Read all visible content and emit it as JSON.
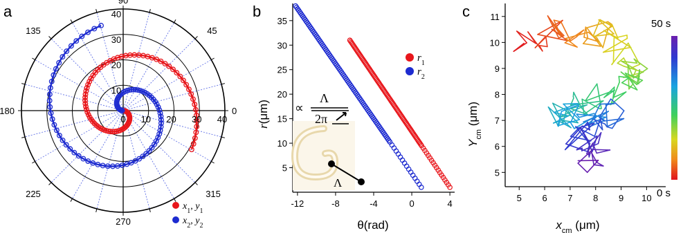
{
  "panel_letters": [
    "a",
    "b",
    "c"
  ],
  "chart_data": [
    {
      "type": "polar",
      "panel": "a",
      "angle_ticks_deg": [
        "90",
        "45",
        "0",
        "315",
        "270",
        "225",
        "180",
        "135"
      ],
      "radial_ticks": [
        "0",
        "10",
        "20",
        "30",
        "40"
      ],
      "r_max": 40,
      "radial_labels_upper": [
        "10",
        "20",
        "30",
        "40"
      ],
      "legend": [
        "x1, y1",
        "x2, y2"
      ],
      "legend_tex": [
        {
          "base": "x",
          "sub": "1",
          "base2": "y",
          "sub2": "1"
        },
        {
          "base": "x",
          "sub": "2",
          "base2": "y",
          "sub2": "2"
        }
      ],
      "series": [
        {
          "name": "x1, y1",
          "color": "#e8161b",
          "r_at_theta0": 0,
          "dr_per_rad": 4.55,
          "theta_end": 6.8
        },
        {
          "name": "x2, y2",
          "color": "#1d2bd0",
          "r_at_theta0": 0,
          "dr_per_rad": 4.55,
          "theta_end": 7.6,
          "phase": 3.14159
        }
      ]
    },
    {
      "type": "scatter",
      "panel": "b",
      "xlabel": "θ(rad)",
      "ylabel_sym": "r",
      "ylabel_unit": "(μm)",
      "xticks": [
        "-12",
        "-8",
        "-4",
        "0",
        "4"
      ],
      "yticks": [
        "5",
        "10",
        "15",
        "20",
        "25",
        "30",
        "35"
      ],
      "xlim": [
        -12.5,
        4.5
      ],
      "ylim": [
        0,
        38.5
      ],
      "legend": [
        "r1",
        "r2"
      ],
      "annotation": {
        "prop": "∝",
        "num": "Λ",
        "den": "2π",
        "lambda": "Λ"
      },
      "series": [
        {
          "name": "r1",
          "color": "#e8161b",
          "x_start": -6.5,
          "y_start": 31,
          "x_end": 4,
          "y_end": 1,
          "x_solid_end": 1
        },
        {
          "name": "r2",
          "color": "#1d2bd0",
          "x_start": -12.2,
          "y_start": 38,
          "x_end": 1,
          "y_end": 1,
          "x_solid_end": -2.2
        }
      ]
    },
    {
      "type": "line",
      "panel": "c",
      "xlabel": "x",
      "xlabel_sub": "cm",
      "xlabel_unit": " (μm)",
      "ylabel": "Y",
      "ylabel_sub": "cm",
      "ylabel_unit": " (μm)",
      "xticks": [
        "5",
        "6",
        "7",
        "8",
        "9",
        "10"
      ],
      "yticks": [
        "5",
        "6",
        "7",
        "8",
        "9",
        "10",
        "11"
      ],
      "xlim": [
        4.45,
        10.75
      ],
      "ylim": [
        4.45,
        11.5
      ],
      "colorbar": {
        "top_label": "50 s",
        "bottom_label": "0 s"
      },
      "trajectory_points_estimated": 200
    }
  ]
}
